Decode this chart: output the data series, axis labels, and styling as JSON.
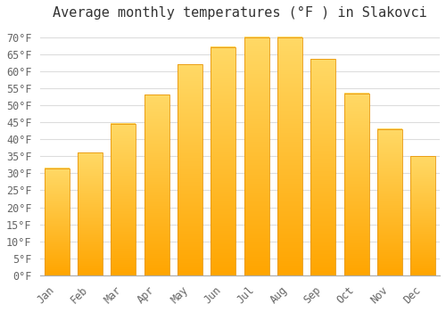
{
  "title": "Average monthly temperatures (°F ) in Slakovci",
  "months": [
    "Jan",
    "Feb",
    "Mar",
    "Apr",
    "May",
    "Jun",
    "Jul",
    "Aug",
    "Sep",
    "Oct",
    "Nov",
    "Dec"
  ],
  "values": [
    31.5,
    36,
    44.5,
    53,
    62,
    67,
    70,
    70,
    63.5,
    53.5,
    43,
    35
  ],
  "bar_color_top": "#FFD966",
  "bar_color_bottom": "#FFA500",
  "bar_edge_color": "#E8960A",
  "background_color": "#FFFFFF",
  "plot_bg_color": "#FAFAFA",
  "grid_color": "#DDDDDD",
  "ylim": [
    0,
    73
  ],
  "yticks": [
    0,
    5,
    10,
    15,
    20,
    25,
    30,
    35,
    40,
    45,
    50,
    55,
    60,
    65,
    70
  ],
  "title_fontsize": 11,
  "tick_fontsize": 8.5,
  "title_color": "#333333",
  "tick_color": "#666666",
  "ylabel_suffix": "°F"
}
